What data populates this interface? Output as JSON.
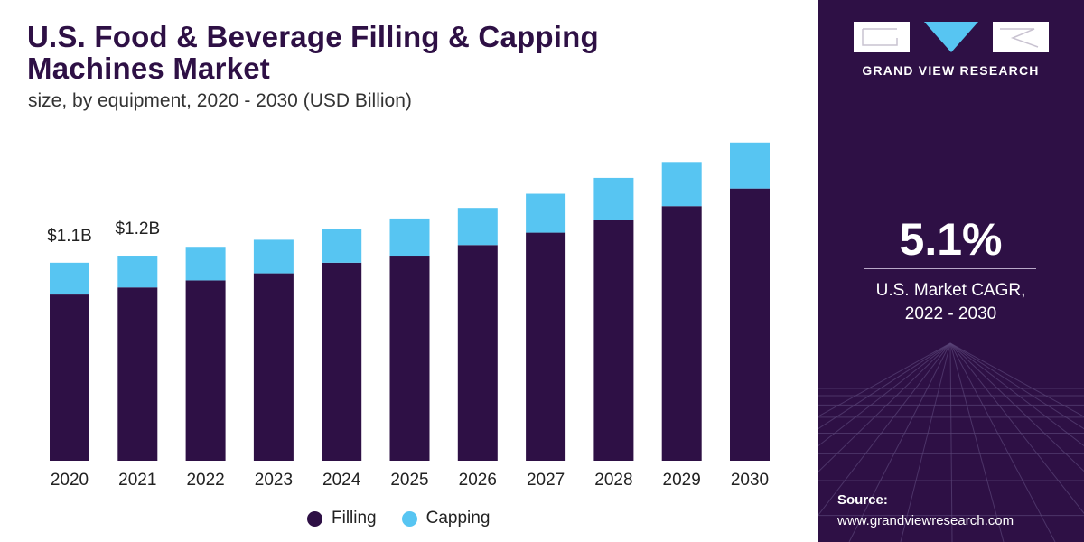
{
  "header": {
    "title_line1": "U.S. Food & Beverage Filling & Capping",
    "title_line2": "Machines Market",
    "subtitle": "size, by equipment, 2020 - 2030 (USD Billion)"
  },
  "chart_data": {
    "type": "bar",
    "stacked": true,
    "categories": [
      "2020",
      "2021",
      "2022",
      "2023",
      "2024",
      "2025",
      "2026",
      "2027",
      "2028",
      "2029",
      "2030"
    ],
    "series": [
      {
        "name": "Filling",
        "color": "#2e1045",
        "values": [
          0.94,
          0.98,
          1.02,
          1.06,
          1.12,
          1.16,
          1.22,
          1.29,
          1.36,
          1.44,
          1.54
        ]
      },
      {
        "name": "Capping",
        "color": "#57c5f2",
        "values": [
          0.18,
          0.18,
          0.19,
          0.19,
          0.19,
          0.21,
          0.21,
          0.22,
          0.24,
          0.25,
          0.26
        ]
      }
    ],
    "data_labels": [
      {
        "category": "2020",
        "text": "$1.1B"
      },
      {
        "category": "2021",
        "text": "$1.2B"
      }
    ],
    "ylim": [
      0,
      1.85
    ],
    "grid": false,
    "legend_position": "bottom-center"
  },
  "sidebar": {
    "brand": "GRAND VIEW RESEARCH",
    "logo_icon": "gvr-logo-icon",
    "cagr_value": "5.1%",
    "cagr_label_line1": "U.S. Market CAGR,",
    "cagr_label_line2": "2022 - 2030",
    "source_label": "Source:",
    "source_url": "www.grandviewresearch.com",
    "background_color": "#2e1045"
  }
}
